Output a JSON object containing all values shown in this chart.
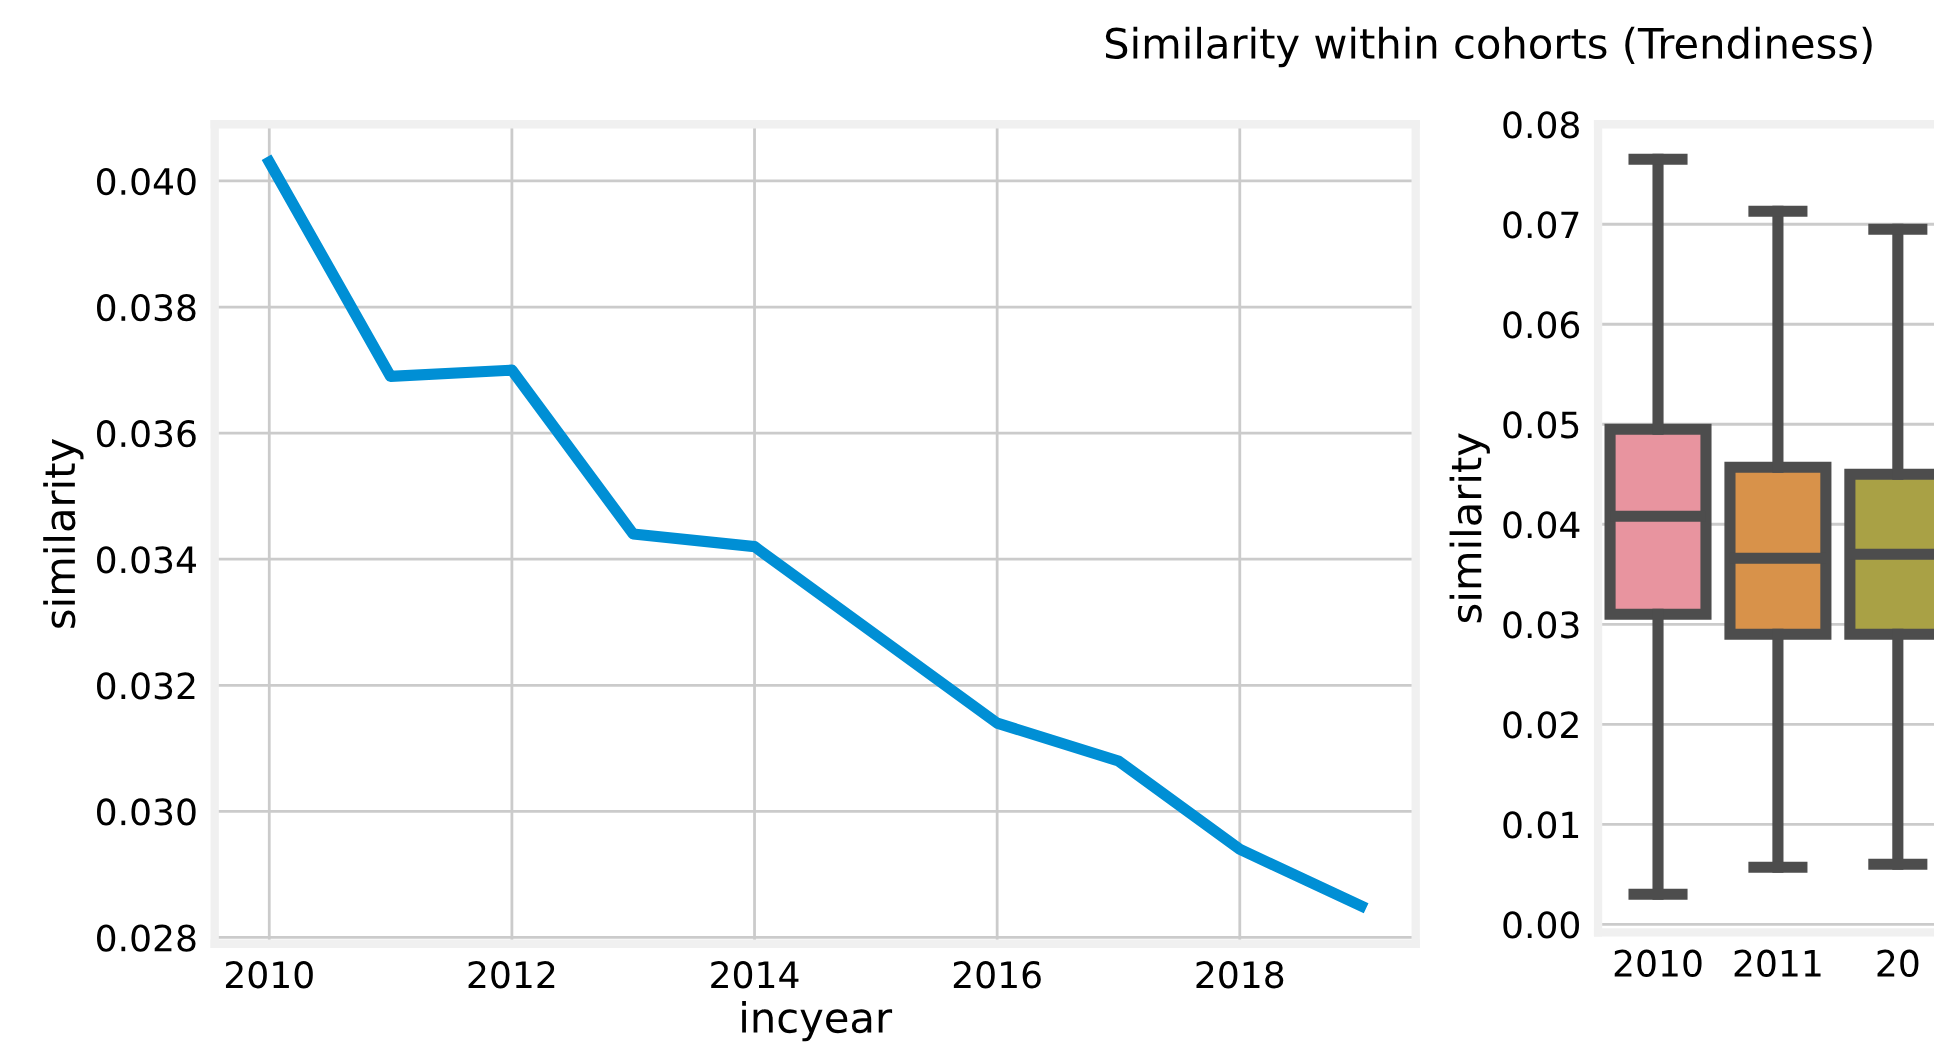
{
  "chart_data": [
    {
      "type": "line",
      "title": "Similarity within cohorts (Trendiness)",
      "xlabel": "incyear",
      "ylabel": "similarity",
      "x": [
        2010,
        2011,
        2012,
        2013,
        2014,
        2015,
        2016,
        2017,
        2018,
        2019
      ],
      "series": [
        {
          "color": "#008fd5",
          "values": [
            0.0403,
            0.0369,
            0.037,
            0.0344,
            0.0342,
            0.0328,
            0.0314,
            0.0308,
            0.0294,
            0.0285
          ]
        }
      ],
      "xlim": [
        2009.55,
        2019.45
      ],
      "xticks": [
        2010,
        2012,
        2014,
        2016,
        2018
      ],
      "ylim": [
        0.0279,
        0.0409
      ],
      "yticks": [
        {
          "value": 0.028,
          "label": "0.028"
        },
        {
          "value": 0.03,
          "label": "0.030"
        },
        {
          "value": 0.032,
          "label": "0.032"
        },
        {
          "value": 0.034,
          "label": "0.034"
        },
        {
          "value": 0.036,
          "label": "0.036"
        },
        {
          "value": 0.038,
          "label": "0.038"
        },
        {
          "value": 0.04,
          "label": "0.040"
        }
      ],
      "grid": true,
      "legend": false,
      "marker": "none",
      "line_style": "solid"
    },
    {
      "type": "box",
      "ylabel": "similarity",
      "categories": [
        "2010",
        "2011",
        "20"
      ],
      "colors": [
        "#e8949f",
        "#d8924a",
        "#a9a145"
      ],
      "boxes": [
        {
          "low": 0.003,
          "q1": 0.031,
          "median": 0.0408,
          "q3": 0.0495,
          "high": 0.0765
        },
        {
          "low": 0.0057,
          "q1": 0.029,
          "median": 0.0366,
          "q3": 0.0457,
          "high": 0.0713
        },
        {
          "low": 0.006,
          "q1": 0.029,
          "median": 0.037,
          "q3": 0.045,
          "high": 0.0695
        }
      ],
      "ylim": [
        -0.0008,
        0.08
      ],
      "yticks": [
        {
          "value": 0,
          "label": "0.00"
        },
        {
          "value": 0.01,
          "label": "0.01"
        },
        {
          "value": 0.02,
          "label": "0.02"
        },
        {
          "value": 0.03,
          "label": "0.03"
        },
        {
          "value": 0.04,
          "label": "0.04"
        },
        {
          "value": 0.05,
          "label": "0.05"
        },
        {
          "value": 0.06,
          "label": "0.06"
        },
        {
          "value": 0.07,
          "label": "0.07"
        },
        {
          "value": 0.08,
          "label": "0.08"
        }
      ],
      "grid": "y",
      "legend": false
    }
  ]
}
